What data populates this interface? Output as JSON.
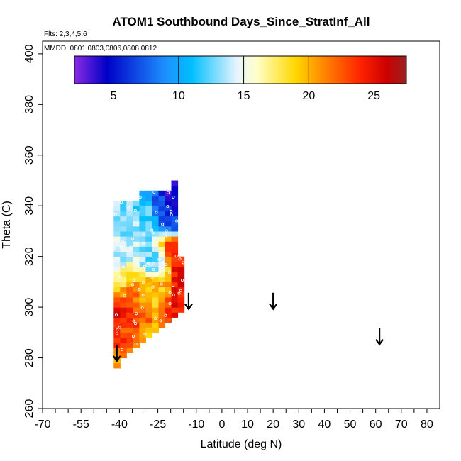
{
  "chart_data": {
    "type": "heatmap",
    "title": "ATOM1 Southbound Days_Since_StratInf_All",
    "flights_note": "Flts: 2,3,4,5,6",
    "dates_note": "MMDD: 0801,0803,0806,0808,0812",
    "xlabel": "Latitude (deg N)",
    "ylabel": "Theta (C)",
    "xlim": [
      -70,
      85
    ],
    "ylim": [
      260,
      405
    ],
    "xticks": [
      "-70",
      "-55",
      "-40",
      "-25",
      "-10",
      "0",
      "10",
      "20",
      "30",
      "40",
      "50",
      "60",
      "70",
      "80"
    ],
    "xtick_values": [
      -70,
      -55,
      -40,
      -25,
      -10,
      0,
      10,
      20,
      30,
      40,
      50,
      60,
      70,
      80
    ],
    "xminor_ticks": [
      -65,
      -60,
      -50,
      -45,
      -35,
      -30,
      -20,
      -15,
      -5,
      5,
      15,
      25,
      35,
      45,
      55,
      65,
      75
    ],
    "yticks": [
      "260",
      "280",
      "300",
      "320",
      "340",
      "360",
      "380",
      "400"
    ],
    "ytick_values": [
      260,
      280,
      300,
      320,
      340,
      360,
      380,
      400
    ],
    "colorbar": {
      "min": 2,
      "max": 27.5,
      "ticks": [
        "5",
        "10",
        "15",
        "20",
        "25"
      ],
      "tick_values": [
        5,
        10,
        15,
        20,
        25
      ],
      "colors": [
        "#8a2be2",
        "#0000c8",
        "#1e90ff",
        "#00bfff",
        "#e8f4ff",
        "#ffffc8",
        "#ffd700",
        "#ff8c00",
        "#ff2200",
        "#cc0000",
        "#992222"
      ],
      "color_positions": [
        2,
        4.5,
        9,
        11,
        14.5,
        16,
        19,
        21,
        24,
        26,
        27.5
      ]
    },
    "grid": false,
    "cell_size": {
      "lat": 2.5,
      "theta": 2
    },
    "columns": [
      {
        "lat": -41,
        "theta_min": 276,
        "theta_max": 342
      },
      {
        "lat": -38.5,
        "theta_min": 280,
        "theta_max": 342
      },
      {
        "lat": -36,
        "theta_min": 282,
        "theta_max": 342
      },
      {
        "lat": -33.5,
        "theta_min": 284,
        "theta_max": 342
      },
      {
        "lat": -31,
        "theta_min": 286,
        "theta_max": 345
      },
      {
        "lat": -28.5,
        "theta_min": 288,
        "theta_max": 345
      },
      {
        "lat": -26,
        "theta_min": 290,
        "theta_max": 345
      },
      {
        "lat": -23.5,
        "theta_min": 292,
        "theta_max": 345
      },
      {
        "lat": -21,
        "theta_min": 294,
        "theta_max": 346
      },
      {
        "lat": -18.5,
        "theta_min": 296,
        "theta_max": 350
      },
      {
        "lat": -16,
        "theta_min": 298,
        "theta_max": 320
      }
    ],
    "flow_field": {
      "dateline_value": 26,
      "anchors": [
        {
          "lat": -40,
          "theta": 336,
          "value": 13
        },
        {
          "lat": -35,
          "theta": 332,
          "value": 13.5
        },
        {
          "lat": -30,
          "theta": 338,
          "value": 12
        },
        {
          "lat": -24,
          "theta": 340,
          "value": 7
        },
        {
          "lat": -21,
          "theta": 342,
          "value": 4
        },
        {
          "lat": -18,
          "theta": 334,
          "value": 6
        },
        {
          "lat": -18,
          "theta": 322,
          "value": 24
        },
        {
          "lat": -28,
          "theta": 318,
          "value": 13
        },
        {
          "lat": -40,
          "theta": 318,
          "value": 14
        },
        {
          "lat": -38,
          "theta": 310,
          "value": 18
        },
        {
          "lat": -36,
          "theta": 305,
          "value": 22
        },
        {
          "lat": -30,
          "theta": 306,
          "value": 20
        },
        {
          "lat": -25,
          "theta": 302,
          "value": 19
        },
        {
          "lat": -21,
          "theta": 300,
          "value": 23
        },
        {
          "lat": -40,
          "theta": 296,
          "value": 25
        },
        {
          "lat": -36,
          "theta": 292,
          "value": 23
        },
        {
          "lat": -30,
          "theta": 294,
          "value": 22
        },
        {
          "lat": -40,
          "theta": 284,
          "value": 24
        },
        {
          "lat": -40,
          "theta": 280,
          "value": 21
        },
        {
          "lat": -28,
          "theta": 290,
          "value": 20
        }
      ]
    },
    "arrows": [
      {
        "lat": -41,
        "theta": 282
      },
      {
        "lat": -13,
        "theta": 302.5
      },
      {
        "lat": 20,
        "theta": 302.5
      },
      {
        "lat": 61.5,
        "theta": 288.5
      }
    ]
  }
}
